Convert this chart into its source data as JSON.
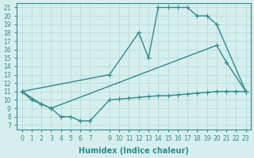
{
  "line1_x": [
    0,
    9,
    12,
    13,
    14,
    15,
    16,
    17,
    18,
    19,
    20,
    23
  ],
  "line1_y": [
    11,
    13,
    18,
    15,
    21,
    21,
    21,
    21,
    20,
    20,
    19,
    11
  ],
  "line2_x": [
    0,
    1,
    2,
    3,
    20,
    21,
    23
  ],
  "line2_y": [
    11,
    10,
    9.5,
    9,
    16.5,
    14.5,
    11
  ],
  "line3_x": [
    0,
    2,
    3,
    4,
    5,
    6,
    7,
    9,
    10,
    11,
    12,
    13,
    14,
    15,
    16,
    17,
    18,
    19,
    20,
    21,
    22,
    23
  ],
  "line3_y": [
    11,
    9.5,
    9,
    8,
    8,
    7.5,
    7.5,
    10,
    10.1,
    10.2,
    10.3,
    10.4,
    10.5,
    10.5,
    10.6,
    10.7,
    10.8,
    10.9,
    11.0,
    11.0,
    11.0,
    11.0
  ],
  "line_color": "#2e8b8b",
  "bg_color": "#d6eeee",
  "grid_color": "#b0d8d8",
  "xlabel": "Humidex (Indice chaleur)",
  "xlim": [
    -0.5,
    23.5
  ],
  "ylim": [
    6.5,
    21.5
  ],
  "yticks": [
    7,
    8,
    9,
    10,
    11,
    12,
    13,
    14,
    15,
    16,
    17,
    18,
    19,
    20,
    21
  ],
  "xticks": [
    0,
    1,
    2,
    3,
    4,
    5,
    6,
    7,
    9,
    10,
    11,
    12,
    13,
    14,
    15,
    16,
    17,
    18,
    19,
    20,
    21,
    22,
    23
  ],
  "tick_fontsize": 5.5,
  "xlabel_fontsize": 7,
  "marker": "+",
  "markersize": 4,
  "linewidth": 1.0
}
